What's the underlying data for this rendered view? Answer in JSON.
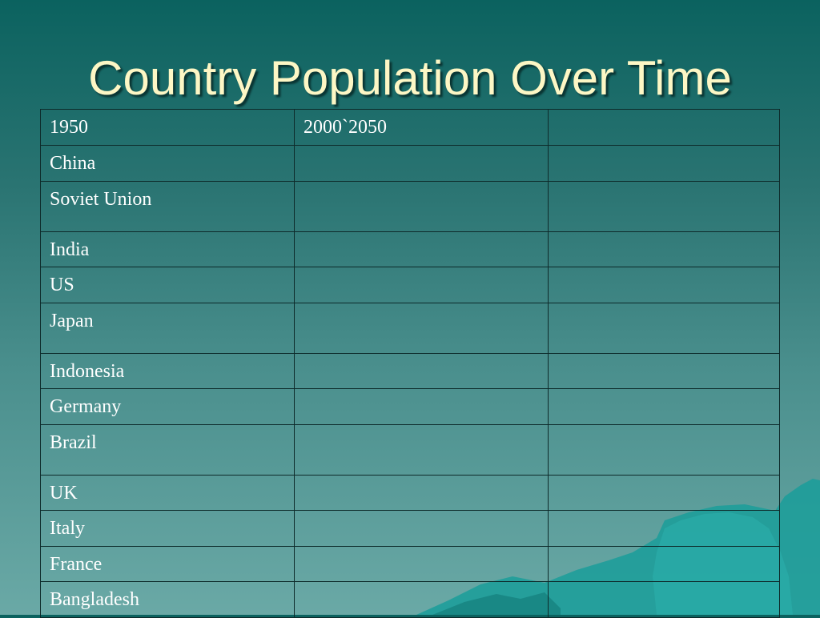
{
  "slide": {
    "title": "Country Population Over Time",
    "header_row": [
      "1950",
      "2000`2050",
      ""
    ],
    "rows": [
      [
        "China",
        "",
        ""
      ],
      [
        "Soviet Union",
        "",
        ""
      ],
      [
        "India",
        "",
        ""
      ],
      [
        "US",
        "",
        ""
      ],
      [
        "Japan",
        "",
        ""
      ],
      [
        "Indonesia",
        "",
        ""
      ],
      [
        "Germany",
        "",
        ""
      ],
      [
        "Brazil",
        "",
        ""
      ],
      [
        "UK",
        "",
        ""
      ],
      [
        "Italy",
        "",
        ""
      ],
      [
        "France",
        "",
        ""
      ],
      [
        "Bangladesh",
        "",
        ""
      ]
    ]
  },
  "colors": {
    "title": "#fdf7c5",
    "grid_line": "#0d2a2a",
    "cell_text": "#ffffff",
    "accent_decoration": "#1a9e9a"
  }
}
